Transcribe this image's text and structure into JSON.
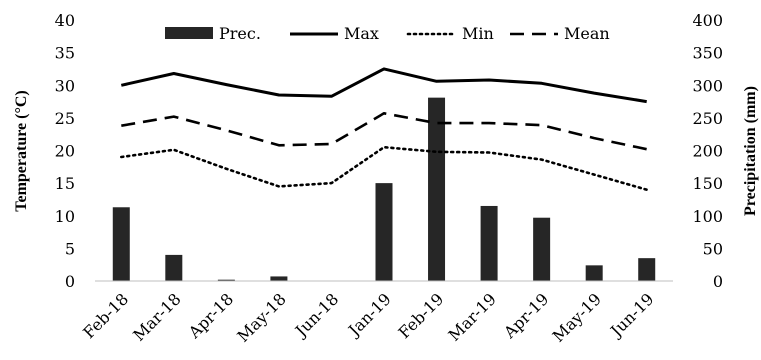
{
  "chart_data": {
    "type": "bar+line",
    "categories": [
      "Feb-18",
      "Mar-18",
      "Apr-18",
      "May-18",
      "Jun-18",
      "Jan-19",
      "Feb-19",
      "Mar-19",
      "Apr-19",
      "May-19",
      "Jun-19"
    ],
    "bars": {
      "name": "Prec.",
      "axis": "right",
      "color": "#262626",
      "values": [
        113,
        40,
        2,
        7,
        0,
        150,
        281,
        115,
        97,
        24,
        35
      ]
    },
    "lines": [
      {
        "name": "Max",
        "style": "solid",
        "color": "#000000",
        "values": [
          30.0,
          31.8,
          30.1,
          28.5,
          28.3,
          32.5,
          30.6,
          30.8,
          30.3,
          28.8,
          27.5
        ]
      },
      {
        "name": "Min",
        "style": "dotted",
        "color": "#000000",
        "values": [
          19.0,
          20.1,
          17.2,
          14.5,
          15.0,
          20.5,
          19.8,
          19.7,
          18.6,
          16.3,
          14.0
        ]
      },
      {
        "name": "Mean",
        "style": "dashed",
        "color": "#000000",
        "values": [
          23.8,
          25.2,
          23.1,
          20.8,
          21.0,
          25.7,
          24.2,
          24.2,
          23.9,
          21.9,
          20.2
        ]
      }
    ],
    "y_left": {
      "label": "Temperature (°C)",
      "lim": [
        0,
        40
      ],
      "ticks": [
        "0",
        "5",
        "10",
        "15",
        "20",
        "25",
        "30",
        "35",
        "40"
      ]
    },
    "y_right": {
      "label": "Precipitation (mm)",
      "lim": [
        0,
        400
      ],
      "ticks": [
        "0",
        "50",
        "100",
        "150",
        "200",
        "250",
        "300",
        "350",
        "400"
      ]
    },
    "legend_position": "top",
    "legend_order": [
      "Prec.",
      "Max",
      "Min",
      "Mean"
    ],
    "grid": false
  }
}
